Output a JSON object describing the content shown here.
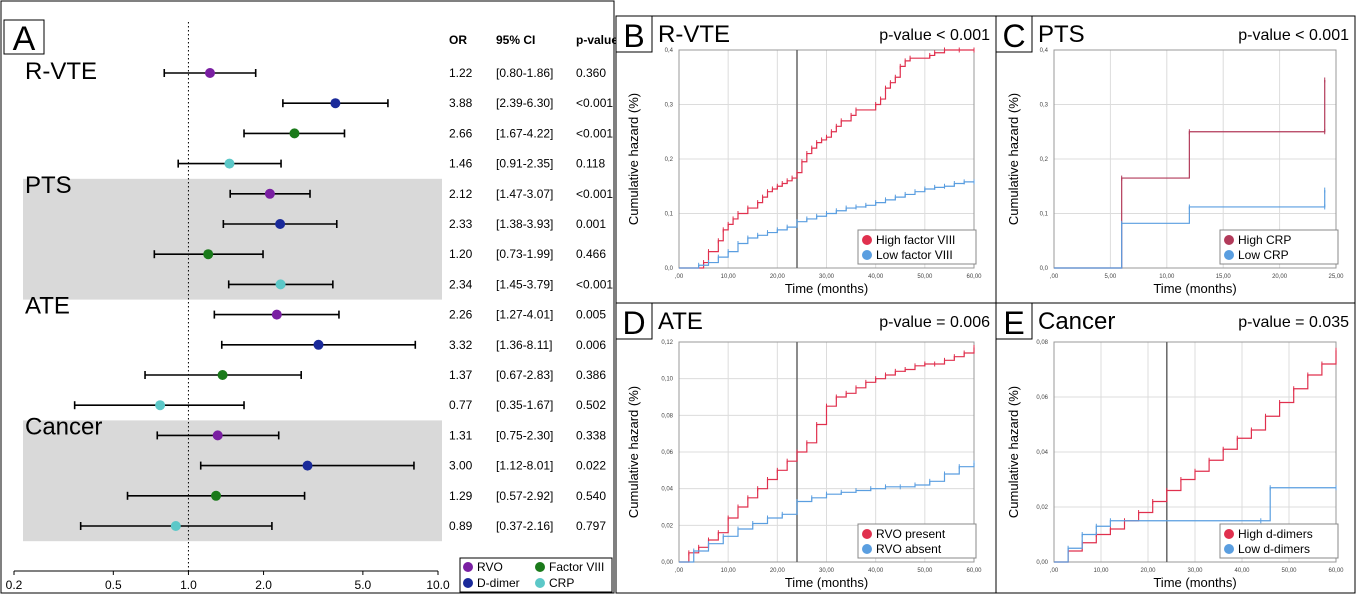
{
  "forest": {
    "panel_letter": "A",
    "col_headers": {
      "or": "OR",
      "ci": "95% CI",
      "p": "p-value"
    },
    "groups": [
      "R-VTE",
      "PTS",
      "ATE",
      "Cancer"
    ],
    "ticks": [
      "0.2",
      "0.5",
      "1.0",
      "2.0",
      "5.0",
      "10.0"
    ],
    "legend": [
      {
        "label": "RVO",
        "color": "#7a1fa2"
      },
      {
        "label": "Factor VIII",
        "color": "#1a7a1a"
      },
      {
        "label": "D-dimer",
        "color": "#1a2a9a"
      },
      {
        "label": "CRP",
        "color": "#5cc8c8"
      }
    ],
    "shade_color": "#d9d9d9"
  },
  "chart_data": [
    {
      "type": "forest",
      "xscale": "log",
      "xlim": [
        0.2,
        10.0
      ],
      "reference_line": 1.0,
      "rows": [
        {
          "group": "R-VTE",
          "marker": "RVO",
          "or": 1.22,
          "lo": 0.8,
          "hi": 1.86,
          "or_text": "1.22",
          "ci_text": "[0.80-1.86]",
          "p_text": "0.360"
        },
        {
          "group": "R-VTE",
          "marker": "D-dimer",
          "or": 3.88,
          "lo": 2.39,
          "hi": 6.3,
          "or_text": "3.88",
          "ci_text": "[2.39-6.30]",
          "p_text": "<0.001"
        },
        {
          "group": "R-VTE",
          "marker": "Factor VIII",
          "or": 2.66,
          "lo": 1.67,
          "hi": 4.22,
          "or_text": "2.66",
          "ci_text": "[1.67-4.22]",
          "p_text": "<0.001"
        },
        {
          "group": "R-VTE",
          "marker": "CRP",
          "or": 1.46,
          "lo": 0.91,
          "hi": 2.35,
          "or_text": "1.46",
          "ci_text": "[0.91-2.35]",
          "p_text": "0.118"
        },
        {
          "group": "PTS",
          "marker": "RVO",
          "or": 2.12,
          "lo": 1.47,
          "hi": 3.07,
          "or_text": "2.12",
          "ci_text": "[1.47-3.07]",
          "p_text": "<0.001"
        },
        {
          "group": "PTS",
          "marker": "D-dimer",
          "or": 2.33,
          "lo": 1.38,
          "hi": 3.93,
          "or_text": "2.33",
          "ci_text": "[1.38-3.93]",
          "p_text": "0.001"
        },
        {
          "group": "PTS",
          "marker": "Factor VIII",
          "or": 1.2,
          "lo": 0.73,
          "hi": 1.99,
          "or_text": "1.20",
          "ci_text": "[0.73-1.99]",
          "p_text": "0.466"
        },
        {
          "group": "PTS",
          "marker": "CRP",
          "or": 2.34,
          "lo": 1.45,
          "hi": 3.79,
          "or_text": "2.34",
          "ci_text": "[1.45-3.79]",
          "p_text": "<0.001"
        },
        {
          "group": "ATE",
          "marker": "RVO",
          "or": 2.26,
          "lo": 1.27,
          "hi": 4.01,
          "or_text": "2.26",
          "ci_text": "[1.27-4.01]",
          "p_text": "0.005"
        },
        {
          "group": "ATE",
          "marker": "D-dimer",
          "or": 3.32,
          "lo": 1.36,
          "hi": 8.11,
          "or_text": "3.32",
          "ci_text": "[1.36-8.11]",
          "p_text": "0.006"
        },
        {
          "group": "ATE",
          "marker": "Factor VIII",
          "or": 1.37,
          "lo": 0.67,
          "hi": 2.83,
          "or_text": "1.37",
          "ci_text": "[0.67-2.83]",
          "p_text": "0.386"
        },
        {
          "group": "ATE",
          "marker": "CRP",
          "or": 0.77,
          "lo": 0.35,
          "hi": 1.67,
          "or_text": "0.77",
          "ci_text": "[0.35-1.67]",
          "p_text": "0.502"
        },
        {
          "group": "Cancer",
          "marker": "RVO",
          "or": 1.31,
          "lo": 0.75,
          "hi": 2.3,
          "or_text": "1.31",
          "ci_text": "[0.75-2.30]",
          "p_text": "0.338"
        },
        {
          "group": "Cancer",
          "marker": "D-dimer",
          "or": 3.0,
          "lo": 1.12,
          "hi": 8.01,
          "or_text": "3.00",
          "ci_text": "[1.12-8.01]",
          "p_text": "0.022"
        },
        {
          "group": "Cancer",
          "marker": "Factor VIII",
          "or": 1.29,
          "lo": 0.57,
          "hi": 2.92,
          "or_text": "1.29",
          "ci_text": "[0.57-2.92]",
          "p_text": "0.540"
        },
        {
          "group": "Cancer",
          "marker": "CRP",
          "or": 0.89,
          "lo": 0.37,
          "hi": 2.16,
          "or_text": "0.89",
          "ci_text": "[0.37-2.16]",
          "p_text": "0.797"
        }
      ]
    },
    {
      "type": "line",
      "panel": "B",
      "title": "R-VTE",
      "pvalue": "p-value < 0.001",
      "xlabel": "Time (months)",
      "ylabel": "Cumulative hazard (%)",
      "xlim": [
        0,
        60
      ],
      "ylim": [
        0,
        0.4
      ],
      "vline": 24,
      "xticks": [
        0,
        10,
        20,
        30,
        40,
        50,
        60
      ],
      "xticklabels": [
        ",00",
        "10,00",
        "20,00",
        "30,00",
        "40,00",
        "50,00",
        "60,00"
      ],
      "yticks": [
        0,
        0.1,
        0.2,
        0.3,
        0.4
      ],
      "yticklabels": [
        "0,0",
        "0,1",
        "0,2",
        "0,3",
        "0,4"
      ],
      "series": [
        {
          "name": "High factor VIII",
          "color": "#e0304e",
          "x": [
            0,
            5,
            6,
            8,
            9,
            10,
            11,
            12,
            14,
            16,
            17,
            18,
            19,
            20,
            21,
            22,
            23,
            24,
            25,
            26,
            27,
            28,
            29,
            30,
            31,
            32,
            33,
            35,
            36,
            40,
            41,
            42,
            43,
            44,
            45,
            46,
            47,
            51,
            52,
            54,
            57,
            60
          ],
          "y": [
            0,
            0.01,
            0.03,
            0.05,
            0.07,
            0.08,
            0.09,
            0.1,
            0.11,
            0.12,
            0.13,
            0.14,
            0.145,
            0.15,
            0.155,
            0.16,
            0.165,
            0.175,
            0.195,
            0.21,
            0.22,
            0.23,
            0.235,
            0.24,
            0.25,
            0.26,
            0.27,
            0.28,
            0.29,
            0.3,
            0.31,
            0.33,
            0.34,
            0.35,
            0.37,
            0.38,
            0.385,
            0.39,
            0.395,
            0.4,
            0.4,
            0.4
          ]
        },
        {
          "name": "Low factor VIII",
          "color": "#5a9ee0",
          "x": [
            0,
            4,
            6,
            8,
            10,
            12,
            14,
            16,
            18,
            20,
            22,
            24,
            26,
            28,
            30,
            32,
            34,
            36,
            38,
            40,
            42,
            44,
            46,
            48,
            50,
            52,
            54,
            56,
            58,
            60
          ],
          "y": [
            0,
            0.005,
            0.01,
            0.02,
            0.03,
            0.045,
            0.055,
            0.06,
            0.065,
            0.07,
            0.075,
            0.085,
            0.09,
            0.095,
            0.1,
            0.105,
            0.11,
            0.112,
            0.115,
            0.12,
            0.125,
            0.13,
            0.135,
            0.14,
            0.145,
            0.148,
            0.15,
            0.155,
            0.158,
            0.158
          ]
        }
      ]
    },
    {
      "type": "line",
      "panel": "C",
      "title": "PTS",
      "pvalue": "p-value < 0.001",
      "xlabel": "Time (months)",
      "ylabel": "Cumulative hazard (%)",
      "xlim": [
        0,
        25
      ],
      "ylim": [
        0,
        0.4
      ],
      "vline": null,
      "xticks": [
        0,
        5,
        10,
        15,
        20,
        25
      ],
      "xticklabels": [
        ",00",
        "5,00",
        "10,00",
        "15,00",
        "20,00",
        "25,00"
      ],
      "yticks": [
        0,
        0.1,
        0.2,
        0.3,
        0.4
      ],
      "yticklabels": [
        "0,0",
        "0,1",
        "0,2",
        "0,3",
        "0,4"
      ],
      "series": [
        {
          "name": "High CRP",
          "color": "#b23a5a",
          "x": [
            0,
            6,
            12,
            24,
            24
          ],
          "y": [
            0,
            0.165,
            0.25,
            0.25,
            0.345
          ]
        },
        {
          "name": "Low CRP",
          "color": "#5a9ee0",
          "x": [
            0,
            6,
            12,
            24,
            24
          ],
          "y": [
            0,
            0.082,
            0.112,
            0.112,
            0.143
          ]
        }
      ]
    },
    {
      "type": "line",
      "panel": "D",
      "title": "ATE",
      "pvalue": "p-value = 0.006",
      "xlabel": "Time (months)",
      "ylabel": "Cumulative hazard (%)",
      "xlim": [
        0,
        60
      ],
      "ylim": [
        0,
        0.12
      ],
      "vline": 24,
      "xticks": [
        0,
        10,
        20,
        30,
        40,
        50,
        60
      ],
      "xticklabels": [
        ",00",
        "10,00",
        "20,00",
        "30,00",
        "40,00",
        "50,00",
        "60,00"
      ],
      "yticks": [
        0,
        0.02,
        0.04,
        0.06,
        0.08,
        0.1,
        0.12
      ],
      "yticklabels": [
        "0,00",
        "0,02",
        "0,04",
        "0,06",
        "0,08",
        "0,10",
        "0,12"
      ],
      "series": [
        {
          "name": "RVO present",
          "color": "#e0304e",
          "x": [
            0,
            2,
            4,
            6,
            8,
            10,
            12,
            14,
            16,
            18,
            20,
            22,
            24,
            26,
            28,
            30,
            32,
            34,
            36,
            38,
            40,
            42,
            44,
            46,
            48,
            50,
            52,
            54,
            56,
            58,
            60
          ],
          "y": [
            0,
            0.005,
            0.008,
            0.012,
            0.016,
            0.024,
            0.03,
            0.035,
            0.04,
            0.045,
            0.05,
            0.055,
            0.06,
            0.065,
            0.075,
            0.085,
            0.09,
            0.092,
            0.095,
            0.098,
            0.1,
            0.102,
            0.104,
            0.105,
            0.107,
            0.108,
            0.108,
            0.11,
            0.112,
            0.114,
            0.117
          ]
        },
        {
          "name": "RVO absent",
          "color": "#5a9ee0",
          "x": [
            0,
            3,
            6,
            9,
            12,
            15,
            18,
            21,
            24,
            27,
            30,
            33,
            36,
            39,
            42,
            45,
            48,
            51,
            54,
            57,
            60
          ],
          "y": [
            0,
            0.006,
            0.01,
            0.014,
            0.018,
            0.021,
            0.024,
            0.026,
            0.033,
            0.035,
            0.037,
            0.038,
            0.039,
            0.04,
            0.041,
            0.041,
            0.042,
            0.044,
            0.048,
            0.052,
            0.054
          ]
        }
      ]
    },
    {
      "type": "line",
      "panel": "E",
      "title": "Cancer",
      "pvalue": "p-value = 0.035",
      "xlabel": "Time (months)",
      "ylabel": "Cumulative hazard (%)",
      "xlim": [
        0,
        60
      ],
      "ylim": [
        0,
        0.08
      ],
      "vline": 24,
      "xticks": [
        0,
        10,
        20,
        30,
        40,
        50,
        60
      ],
      "xticklabels": [
        ",00",
        "10,00",
        "20,00",
        "30,00",
        "40,00",
        "50,00",
        "60,00"
      ],
      "yticks": [
        0,
        0.02,
        0.04,
        0.06,
        0.08
      ],
      "yticklabels": [
        "0,00",
        "0,02",
        "0,04",
        "0,06",
        "0,08"
      ],
      "series": [
        {
          "name": "High d-dimers",
          "color": "#e0304e",
          "x": [
            0,
            3,
            6,
            9,
            12,
            15,
            18,
            21,
            24,
            27,
            30,
            33,
            36,
            39,
            42,
            45,
            48,
            51,
            54,
            57,
            60
          ],
          "y": [
            0,
            0.004,
            0.007,
            0.01,
            0.012,
            0.015,
            0.018,
            0.022,
            0.026,
            0.03,
            0.033,
            0.037,
            0.041,
            0.045,
            0.048,
            0.053,
            0.058,
            0.063,
            0.068,
            0.072,
            0.077
          ]
        },
        {
          "name": "Low d-dimers",
          "color": "#5a9ee0",
          "x": [
            0,
            3,
            6,
            9,
            12,
            44,
            46,
            60
          ],
          "y": [
            0,
            0.005,
            0.01,
            0.013,
            0.015,
            0.015,
            0.027,
            0.027
          ]
        }
      ]
    }
  ]
}
